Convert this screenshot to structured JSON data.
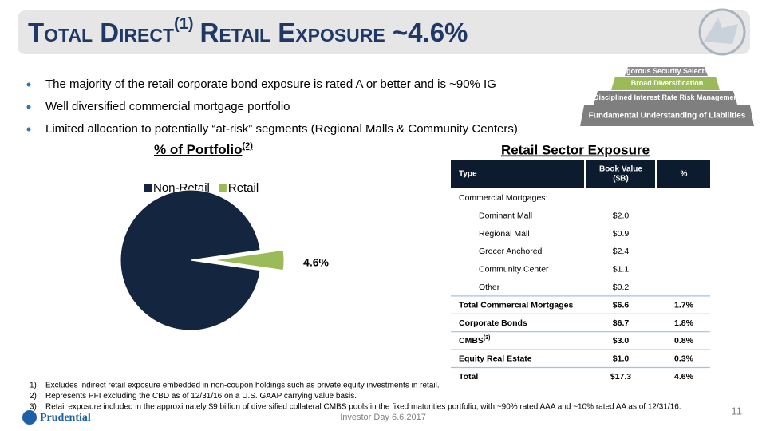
{
  "title": {
    "before": "Total Direct",
    "sup": "(1)",
    "after": "Retail Exposure ~4.6%"
  },
  "bullets": [
    "The majority of the retail corporate bond exposure is rated A or better and is ~90% IG",
    "Well diversified commercial mortgage portfolio",
    "Limited allocation to potentially “at-risk” segments (Regional Malls & Community Centers)"
  ],
  "pyramid": [
    "Rigorous Security Selection",
    "Broad Diversification",
    "Disciplined Interest Rate Risk Management",
    "Fundamental Understanding of Liabilities"
  ],
  "chart_data": {
    "type": "pie",
    "title": "% of Portfolio",
    "title_sup": "(2)",
    "categories": [
      "Non-Retail",
      "Retail"
    ],
    "values": [
      95.4,
      4.6
    ],
    "value_labels": [
      null,
      "4.6%"
    ],
    "colors": [
      "#14253f",
      "#9bbb59"
    ],
    "legend": "top"
  },
  "table": {
    "title": "Retail Sector Exposure",
    "header": [
      "Type",
      [
        "Book Value",
        "($B)"
      ],
      "%"
    ],
    "rows": [
      {
        "cells": [
          "Commercial Mortgages:"
        ]
      },
      {
        "cells": [
          "Dominant Mall",
          "$2.0"
        ],
        "indent": true
      },
      {
        "cells": [
          "Regional Mall",
          "$0.9"
        ],
        "indent": true
      },
      {
        "cells": [
          "Grocer Anchored",
          "$2.4"
        ],
        "indent": true
      },
      {
        "cells": [
          "Community Center",
          "$1.1"
        ],
        "indent": true
      },
      {
        "cells": [
          "Other",
          "$0.2"
        ],
        "indent": true
      },
      {
        "cells": [
          "Total Commercial Mortgages",
          "$6.6",
          "1.7%"
        ],
        "bold": true
      },
      {
        "cells": [
          "Corporate Bonds",
          "$6.7",
          "1.8%"
        ],
        "bold": true
      },
      {
        "cells": [
          "CMBS",
          "$3.0",
          "0.8%"
        ],
        "sup": "(3)",
        "bold": true
      },
      {
        "cells": [
          "Equity Real Estate",
          "$1.0",
          "0.3%"
        ],
        "bold": true
      },
      {
        "cells": [
          "Total",
          "$17.3",
          "4.6%"
        ],
        "bold": true
      }
    ]
  },
  "footnotes": [
    {
      "number": "1)",
      "text": "Excludes indirect retail exposure embedded in non-coupon holdings such as private equity investments in retail."
    },
    {
      "number": "2)",
      "text": "Represents PFI excluding the CBD as of 12/31/16 on a U.S. GAAP carrying value basis."
    },
    {
      "number": "3)",
      "text": "Retail exposure included in the approximately $9 billion of diversified collateral CMBS pools in the fixed maturities portfolio, with ~90% rated AAA and ~10% rated AA as of 12/31/16."
    }
  ],
  "footer": "Investor Day 6.6.2017",
  "page_number": "11",
  "logo": "Prudential"
}
